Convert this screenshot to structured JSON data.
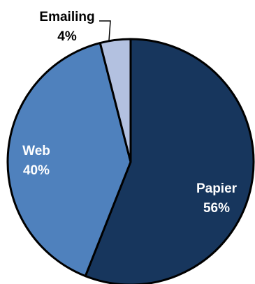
{
  "chart_data": {
    "type": "pie",
    "title": "",
    "slices": [
      {
        "label": "Papier",
        "value": 56,
        "value_label": "56%",
        "color": "#17365d",
        "text_color": "#ffffff"
      },
      {
        "label": "Web",
        "value": 40,
        "value_label": "40%",
        "color": "#4f81bd",
        "text_color": "#ffffff"
      },
      {
        "label": "Emailing",
        "value": 4,
        "value_label": "4%",
        "color": "#b3c1e0",
        "text_color": "#000000"
      }
    ],
    "start_angle": "12 o'clock",
    "direction": "clockwise",
    "legend": "none"
  }
}
